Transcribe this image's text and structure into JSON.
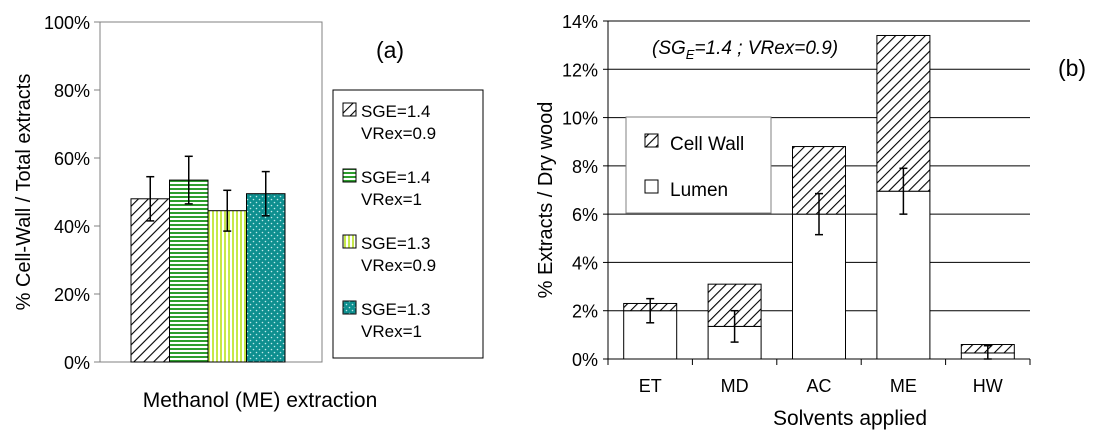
{
  "chart_data": [
    {
      "type": "bar",
      "panel_label": "(a)",
      "xlabel": "Methanol (ME) extraction",
      "ylabel": "% Cell-Wall / Total extracts",
      "ylim": [
        0,
        100
      ],
      "ytick_labels": [
        "0%",
        "20%",
        "40%",
        "60%",
        "80%",
        "100%"
      ],
      "yticks": [
        0,
        20,
        40,
        60,
        80,
        100
      ],
      "grid": false,
      "legend_position": "right",
      "series": [
        {
          "name_lines": [
            "SGE=1.4",
            "VRex=0.9"
          ],
          "value": 48,
          "err": 6.5,
          "pattern": "diag",
          "color": "#ffffff"
        },
        {
          "name_lines": [
            "SGE=1.4",
            "VRex=1"
          ],
          "value": 53.5,
          "err": 7,
          "pattern": "hstripe",
          "color": "#2e9e2e"
        },
        {
          "name_lines": [
            "SGE=1.3",
            "VRex=0.9"
          ],
          "value": 44.5,
          "err": 6,
          "pattern": "vstripe",
          "color": "#c6e84a"
        },
        {
          "name_lines": [
            "SGE=1.3",
            "VRex=1"
          ],
          "value": 49.5,
          "err": 6.5,
          "pattern": "dots",
          "color": "#0e8f8f"
        }
      ]
    },
    {
      "type": "bar",
      "stacked": true,
      "panel_label": "(b)",
      "annotation": "(SG",
      "annotation_sub": "E",
      "annotation_rest": "=1.4 ; VRex=0.9)",
      "xlabel": "Solvents applied",
      "ylabel": "% Extracts / Dry wood",
      "ylim": [
        0,
        14
      ],
      "ytick_labels": [
        "0%",
        "2%",
        "4%",
        "6%",
        "8%",
        "10%",
        "12%",
        "14%"
      ],
      "yticks": [
        0,
        2,
        4,
        6,
        8,
        10,
        12,
        14
      ],
      "grid": true,
      "legend_position": "top-left",
      "categories": [
        "ET",
        "MD",
        "AC",
        "ME",
        "HW"
      ],
      "series": [
        {
          "name": "Lumen",
          "values": [
            2.0,
            1.35,
            6.0,
            6.95,
            0.25
          ],
          "color": "#ffffff",
          "pattern": "none"
        },
        {
          "name": "Cell Wall",
          "values": [
            0.3,
            1.75,
            2.8,
            6.45,
            0.35
          ],
          "color": "#ffffff",
          "pattern": "diag"
        }
      ],
      "error_bars": {
        "center": [
          2.0,
          1.35,
          6.0,
          6.95,
          0.25
        ],
        "err": [
          0.5,
          0.65,
          0.85,
          0.95,
          0.3
        ]
      }
    }
  ]
}
